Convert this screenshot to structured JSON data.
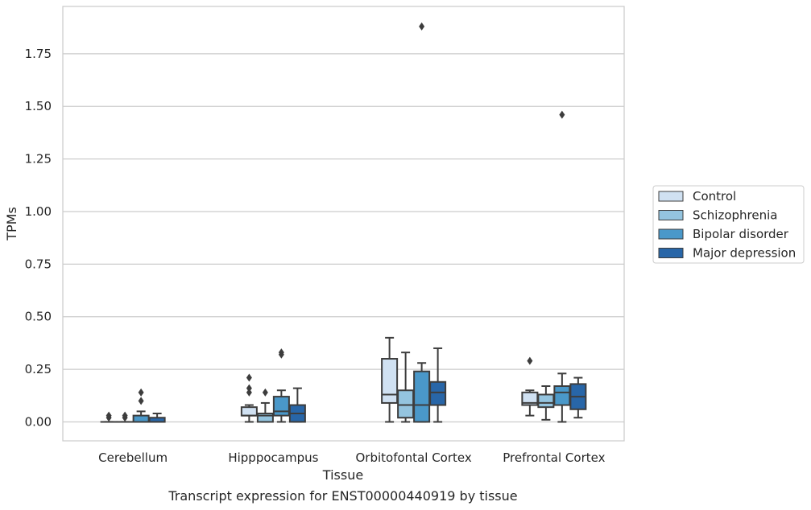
{
  "chart_data": {
    "type": "box",
    "title": "",
    "xlabel": "Tissue",
    "ylabel": "TPMs",
    "caption": "Transcript expression for ENST00000440919 by tissue",
    "ylim": [
      -0.09,
      1.975
    ],
    "yticks": [
      0.0,
      0.25,
      0.5,
      0.75,
      1.0,
      1.25,
      1.5,
      1.75
    ],
    "ytick_labels": [
      "0.00",
      "0.25",
      "0.50",
      "0.75",
      "1.00",
      "1.25",
      "1.50",
      "1.75"
    ],
    "grid": "horizontal",
    "legend_position": "right",
    "categories": [
      "Cerebellum",
      "Hipppocampus",
      "Orbitofontal Cortex",
      "Prefrontal Cortex"
    ],
    "series": [
      {
        "name": "Control",
        "color": "#d0e1f2",
        "boxes": [
          {
            "whislo": 0.0,
            "q1": 0.0,
            "med": 0.0,
            "q3": 0.0,
            "whishi": 0.0,
            "fliers": [
              0.02,
              0.03
            ]
          },
          {
            "whislo": 0.0,
            "q1": 0.03,
            "med": 0.03,
            "q3": 0.07,
            "whishi": 0.08,
            "fliers": [
              0.14,
              0.16,
              0.21
            ]
          },
          {
            "whislo": 0.0,
            "q1": 0.09,
            "med": 0.13,
            "q3": 0.3,
            "whishi": 0.4,
            "fliers": []
          },
          {
            "whislo": 0.03,
            "q1": 0.08,
            "med": 0.09,
            "q3": 0.14,
            "whishi": 0.15,
            "fliers": [
              0.29
            ]
          }
        ]
      },
      {
        "name": "Schizophrenia",
        "color": "#94c4df",
        "boxes": [
          {
            "whislo": 0.0,
            "q1": 0.0,
            "med": 0.0,
            "q3": 0.0,
            "whishi": 0.0,
            "fliers": [
              0.02,
              0.03
            ]
          },
          {
            "whislo": 0.0,
            "q1": 0.0,
            "med": 0.03,
            "q3": 0.04,
            "whishi": 0.09,
            "fliers": [
              0.14
            ]
          },
          {
            "whislo": 0.0,
            "q1": 0.02,
            "med": 0.08,
            "q3": 0.15,
            "whishi": 0.33,
            "fliers": []
          },
          {
            "whislo": 0.01,
            "q1": 0.07,
            "med": 0.09,
            "q3": 0.13,
            "whishi": 0.17,
            "fliers": []
          }
        ]
      },
      {
        "name": "Bipolar disorder",
        "color": "#4a98c9",
        "boxes": [
          {
            "whislo": 0.0,
            "q1": 0.0,
            "med": 0.0,
            "q3": 0.03,
            "whishi": 0.05,
            "fliers": [
              0.1,
              0.14
            ]
          },
          {
            "whislo": 0.0,
            "q1": 0.03,
            "med": 0.05,
            "q3": 0.12,
            "whishi": 0.15,
            "fliers": [
              0.32,
              0.33
            ]
          },
          {
            "whislo": 0.0,
            "q1": 0.0,
            "med": 0.08,
            "q3": 0.24,
            "whishi": 0.28,
            "fliers": [
              1.88
            ]
          },
          {
            "whislo": 0.0,
            "q1": 0.08,
            "med": 0.14,
            "q3": 0.17,
            "whishi": 0.23,
            "fliers": [
              1.46
            ]
          }
        ]
      },
      {
        "name": "Major depression",
        "color": "#2866a8",
        "boxes": [
          {
            "whislo": 0.0,
            "q1": 0.0,
            "med": 0.0,
            "q3": 0.02,
            "whishi": 0.04,
            "fliers": []
          },
          {
            "whislo": 0.0,
            "q1": 0.0,
            "med": 0.04,
            "q3": 0.08,
            "whishi": 0.16,
            "fliers": []
          },
          {
            "whislo": 0.0,
            "q1": 0.08,
            "med": 0.14,
            "q3": 0.19,
            "whishi": 0.35,
            "fliers": []
          },
          {
            "whislo": 0.02,
            "q1": 0.06,
            "med": 0.12,
            "q3": 0.18,
            "whishi": 0.21,
            "fliers": []
          }
        ]
      }
    ]
  }
}
